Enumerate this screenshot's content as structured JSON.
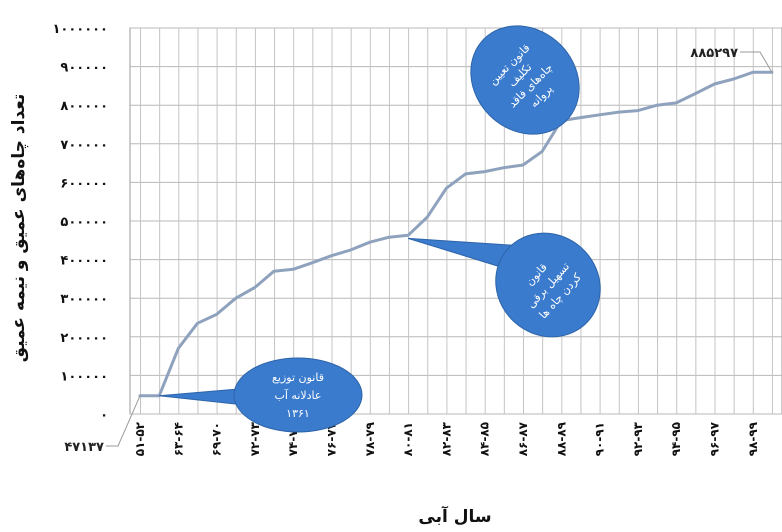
{
  "chart_data": {
    "type": "line",
    "title": "",
    "xlabel": "سال آبی",
    "ylabel": "تعداد چاه‌های عمیق و نیمه عمیق",
    "ylim": [
      0,
      1000000
    ],
    "y_ticks": [
      "۰",
      "۱۰۰۰۰۰",
      "۲۰۰۰۰۰",
      "۳۰۰۰۰۰",
      "۴۰۰۰۰۰",
      "۵۰۰۰۰۰",
      "۶۰۰۰۰۰",
      "۷۰۰۰۰۰",
      "۸۰۰۰۰۰",
      "۹۰۰۰۰۰",
      "۱۰۰۰۰۰۰"
    ],
    "categories": [
      "۵۱-۵۲",
      "۶۳-۶۴",
      "۶۹-۷۰",
      "۷۲-۷۳",
      "۷۴-۷۵",
      "۷۶-۷۷",
      "۷۸-۷۹",
      "۸۰-۸۱",
      "۸۲-۸۳",
      "۸۴-۸۵",
      "۸۶-۸۷",
      "۸۸-۸۹",
      "۹۰-۹۱",
      "۹۲-۹۳",
      "۹۴-۹۵",
      "۹۶-۹۷",
      "۹۸-۹۹"
    ],
    "x": [
      0,
      0.5,
      1,
      1.5,
      2,
      2.5,
      3,
      3.5,
      4,
      4.5,
      5,
      5.5,
      6,
      6.5,
      7,
      7.5,
      8,
      8.5,
      9,
      9.5,
      10,
      10.5,
      11,
      11.5,
      12,
      12.5,
      13,
      13.5,
      14,
      14.5,
      15,
      15.5,
      16,
      16.5
    ],
    "values": [
      47137,
      47137,
      170000,
      235000,
      258000,
      300000,
      328000,
      370000,
      375000,
      392000,
      410000,
      425000,
      445000,
      458000,
      463000,
      510000,
      585000,
      622000,
      628000,
      638000,
      645000,
      680000,
      760000,
      768000,
      775000,
      782000,
      786000,
      800000,
      806000,
      830000,
      855000,
      868000,
      885297,
      885297
    ],
    "grid": true,
    "annotations": [
      {
        "text": "۴۷۱۳۷",
        "point": "start"
      },
      {
        "text": "۸۸۵۲۹۷",
        "point": "end"
      }
    ],
    "callouts": [
      {
        "lines": [
          "قانون توزیع",
          "عادلانه آب",
          "۱۳۶۱"
        ],
        "x": 0.5,
        "y": 47137
      },
      {
        "lines": [
          "قانون",
          "تسهیل برقی",
          "کردن چاه ها"
        ],
        "x": 7,
        "y": 455000
      },
      {
        "lines": [
          "قانون تعیین",
          "تکلیف",
          "چاه‌های فاقد",
          "پروانه"
        ],
        "x": 11,
        "y": 760000
      }
    ],
    "line_color": "#8fa2bd",
    "callout_color": "#3a7bcd"
  }
}
